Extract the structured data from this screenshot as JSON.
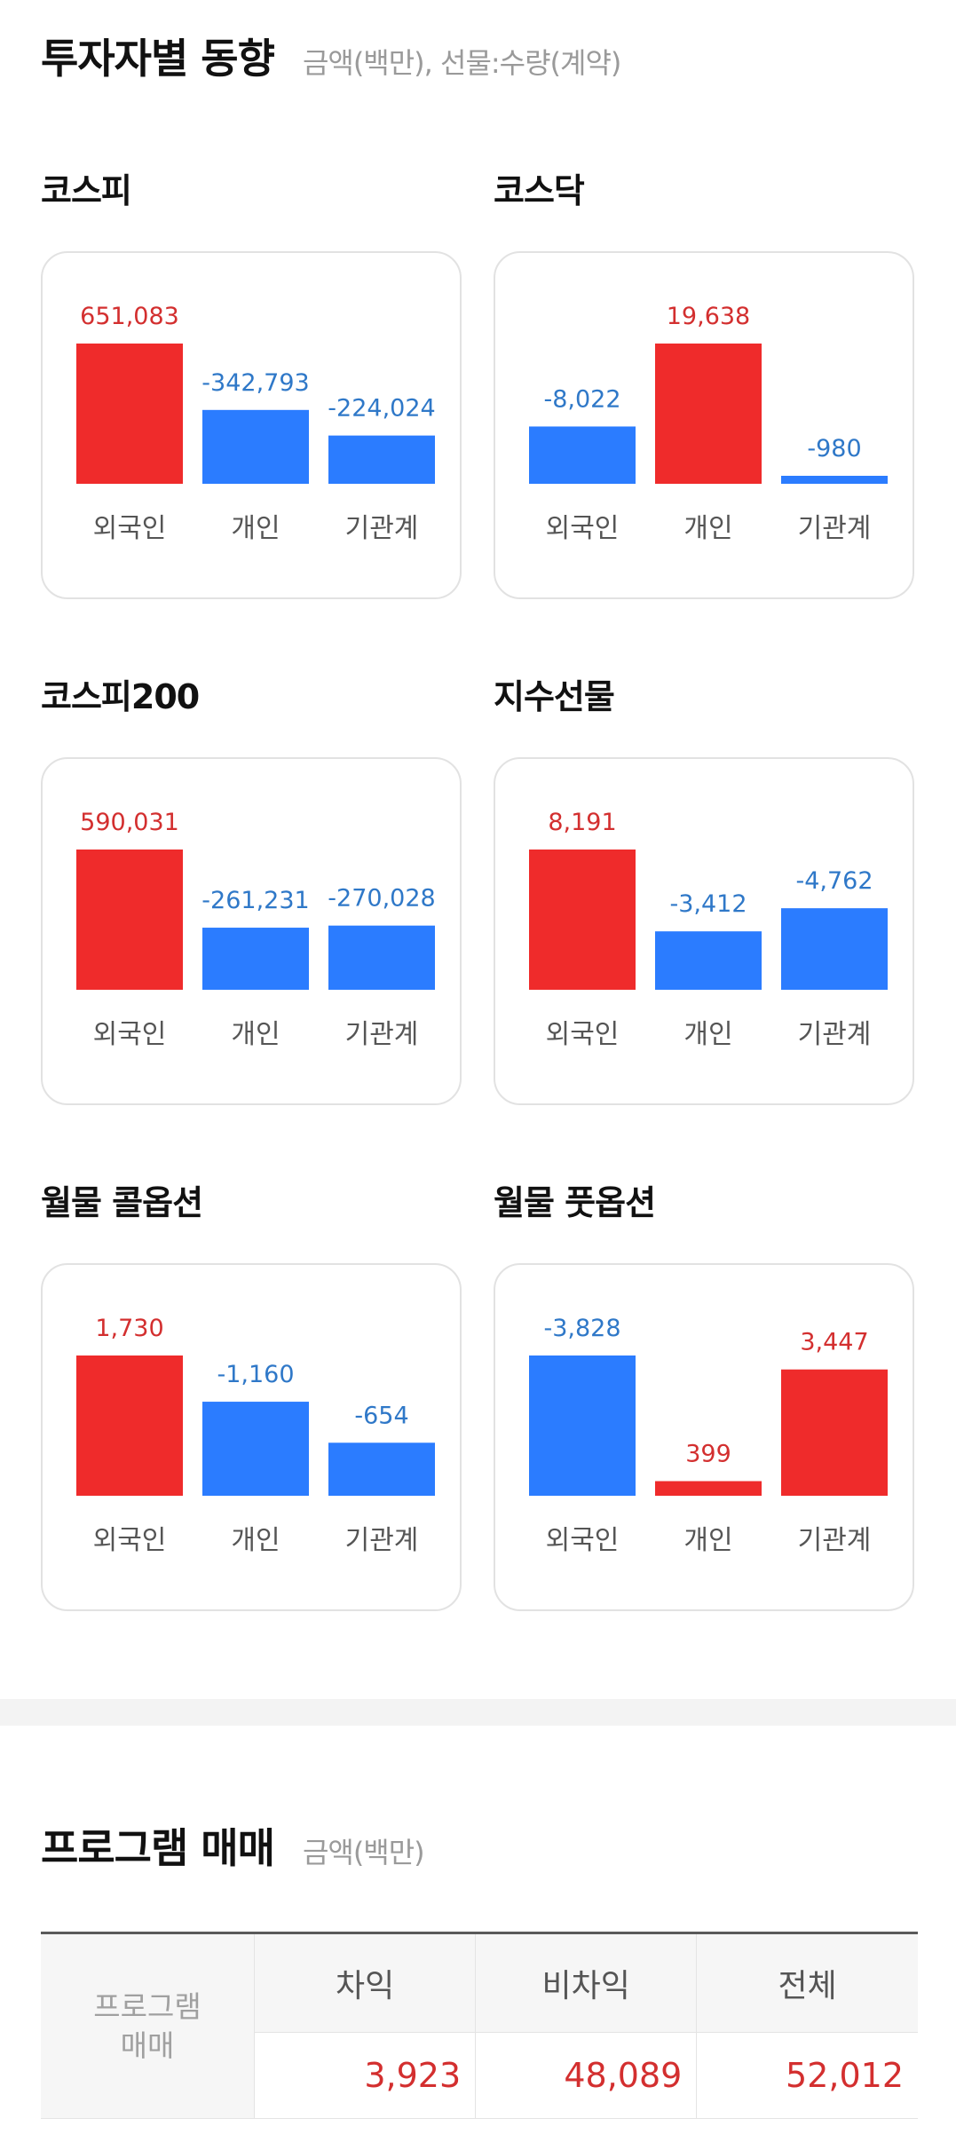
{
  "investor": {
    "title": "투자자별 동향",
    "subtitle": "금액(백만), 선물:수량(계약)",
    "categories": [
      "외국인",
      "개인",
      "기관계"
    ],
    "colors": {
      "positive": "#ef2b2b",
      "negative": "#2b7cff",
      "positive_text": "#d32f2f",
      "negative_text": "#2f78c8"
    }
  },
  "chart_data": [
    {
      "type": "bar",
      "title": "코스피",
      "categories": [
        "외국인",
        "개인",
        "기관계"
      ],
      "values": [
        651083,
        -342793,
        -224024
      ],
      "labels": [
        "651,083",
        "-342,793",
        "-224,024"
      ]
    },
    {
      "type": "bar",
      "title": "코스닥",
      "categories": [
        "외국인",
        "개인",
        "기관계"
      ],
      "values": [
        -8022,
        19638,
        -980
      ],
      "labels": [
        "-8,022",
        "19,638",
        "-980"
      ]
    },
    {
      "type": "bar",
      "title": "코스피200",
      "categories": [
        "외국인",
        "개인",
        "기관계"
      ],
      "values": [
        590031,
        -261231,
        -270028
      ],
      "labels": [
        "590,031",
        "-261,231",
        "-270,028"
      ]
    },
    {
      "type": "bar",
      "title": "지수선물",
      "categories": [
        "외국인",
        "개인",
        "기관계"
      ],
      "values": [
        8191,
        -3412,
        -4762
      ],
      "labels": [
        "8,191",
        "-3,412",
        "-4,762"
      ]
    },
    {
      "type": "bar",
      "title": "월물 콜옵션",
      "categories": [
        "외국인",
        "개인",
        "기관계"
      ],
      "values": [
        1730,
        -1160,
        -654
      ],
      "labels": [
        "1,730",
        "-1,160",
        "-654"
      ]
    },
    {
      "type": "bar",
      "title": "월물 풋옵션",
      "categories": [
        "외국인",
        "개인",
        "기관계"
      ],
      "values": [
        -3828,
        399,
        3447
      ],
      "labels": [
        "-3,828",
        "399",
        "3,447"
      ]
    }
  ],
  "program": {
    "title": "프로그램 매매",
    "subtitle": "금액(백만)",
    "row_header": "프로그램\n매매",
    "columns": [
      "차익",
      "비차익",
      "전체"
    ],
    "values": [
      "3,923",
      "48,089",
      "52,012"
    ]
  }
}
